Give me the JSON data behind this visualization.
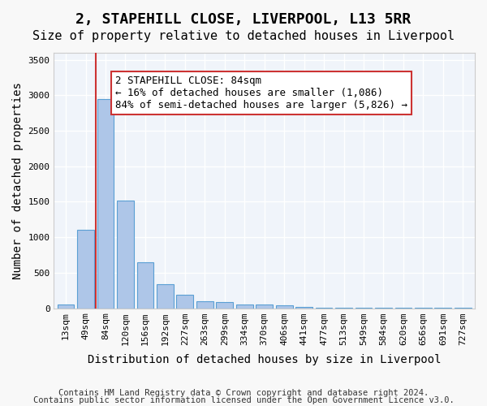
{
  "title_line1": "2, STAPEHILL CLOSE, LIVERPOOL, L13 5RR",
  "title_line2": "Size of property relative to detached houses in Liverpool",
  "xlabel": "Distribution of detached houses by size in Liverpool",
  "ylabel": "Number of detached properties",
  "bar_labels": [
    "13sqm",
    "49sqm",
    "84sqm",
    "120sqm",
    "156sqm",
    "192sqm",
    "227sqm",
    "263sqm",
    "299sqm",
    "334sqm",
    "370sqm",
    "406sqm",
    "441sqm",
    "477sqm",
    "513sqm",
    "549sqm",
    "584sqm",
    "620sqm",
    "656sqm",
    "691sqm",
    "727sqm"
  ],
  "bar_values": [
    55,
    1100,
    2950,
    1520,
    650,
    340,
    185,
    95,
    90,
    55,
    50,
    35,
    15,
    10,
    8,
    5,
    4,
    3,
    2,
    2,
    1
  ],
  "bar_color": "#aec6e8",
  "bar_edge_color": "#5a9fd4",
  "highlight_bar_index": 2,
  "highlight_bar_color": "#cc3333",
  "vline_x": 2,
  "annotation_text": "2 STAPEHILL CLOSE: 84sqm\n← 16% of detached houses are smaller (1,086)\n84% of semi-detached houses are larger (5,826) →",
  "annotation_box_color": "#cc3333",
  "ylim": [
    0,
    3600
  ],
  "yticks": [
    0,
    500,
    1000,
    1500,
    2000,
    2500,
    3000,
    3500
  ],
  "footer_line1": "Contains HM Land Registry data © Crown copyright and database right 2024.",
  "footer_line2": "Contains public sector information licensed under the Open Government Licence v3.0.",
  "background_color": "#f0f4fa",
  "grid_color": "#ffffff",
  "title1_fontsize": 13,
  "title2_fontsize": 11,
  "axis_label_fontsize": 10,
  "tick_fontsize": 8,
  "annotation_fontsize": 9,
  "footer_fontsize": 7.5
}
